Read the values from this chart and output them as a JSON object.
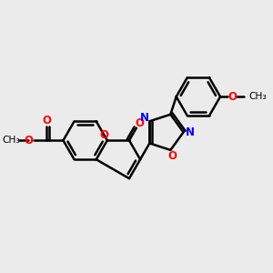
{
  "bg_color": "#ebebeb",
  "bond_color": "#000000",
  "bond_width": 1.8,
  "atom_colors": {
    "O": "#ff0000",
    "N": "#0000ff",
    "C": "#000000"
  },
  "font_size": 8.5,
  "figsize": [
    3.0,
    3.0
  ],
  "dpi": 100,
  "xlim": [
    0,
    10
  ],
  "ylim": [
    2,
    8.5
  ]
}
